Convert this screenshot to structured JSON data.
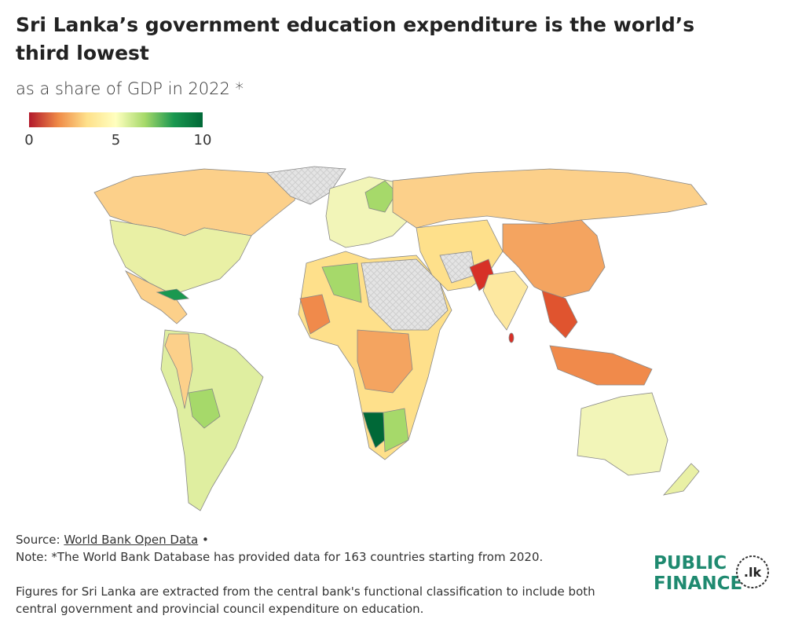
{
  "header": {
    "title": "Sri Lanka’s government education expenditure is the world’s third lowest",
    "subtitle": "as a share of GDP in 2022 *"
  },
  "legend": {
    "range": [
      0,
      10
    ],
    "ticks": [
      0,
      5,
      10
    ],
    "colors": [
      "#b2182b",
      "#ef8a47",
      "#fee08b",
      "#ffffbf",
      "#a6d96a",
      "#1a9850",
      "#006837"
    ]
  },
  "footer": {
    "source_label": "Source:",
    "source_link": "World Bank Open Data",
    "separator": "•",
    "note": "Note: *The World Bank Database has provided data for 163 countries starting from 2020.",
    "figures": "Figures for Sri Lanka are extracted from the central bank's functional classification to include both central government and provincial council expenditure on education."
  },
  "logo": {
    "line1": "PUBLIC",
    "line2": "FINANCE",
    "badge": ".lk"
  }
}
